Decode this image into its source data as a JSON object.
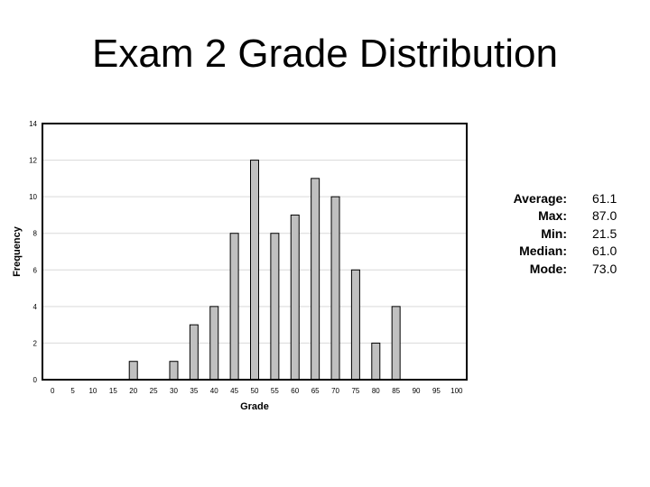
{
  "slide": {
    "title": "Exam 2 Grade Distribution"
  },
  "stats": [
    {
      "label": "Average:",
      "value": "61.1"
    },
    {
      "label": "Max:",
      "value": "87.0"
    },
    {
      "label": "Min:",
      "value": "21.5"
    },
    {
      "label": "Median:",
      "value": "61.0"
    },
    {
      "label": "Mode:",
      "value": "73.0"
    }
  ],
  "chart_data": {
    "type": "bar",
    "xlabel": "Grade",
    "ylabel": "Frequency",
    "categories": [
      "0",
      "5",
      "10",
      "15",
      "20",
      "25",
      "30",
      "35",
      "40",
      "45",
      "50",
      "55",
      "60",
      "65",
      "70",
      "75",
      "80",
      "85",
      "90",
      "95",
      "100"
    ],
    "values": [
      0,
      0,
      0,
      0,
      1,
      0,
      1,
      3,
      4,
      8,
      12,
      8,
      9,
      11,
      10,
      6,
      2,
      4,
      0,
      0,
      0
    ],
    "yticks": [
      0,
      2,
      4,
      6,
      8,
      10,
      12,
      14
    ],
    "ylim": [
      0,
      14
    ],
    "grid": true,
    "legend": "none",
    "colors": {
      "bar": "#c0c0c0",
      "bar_edge": "#000000",
      "grid": "#d9d9d9"
    }
  }
}
